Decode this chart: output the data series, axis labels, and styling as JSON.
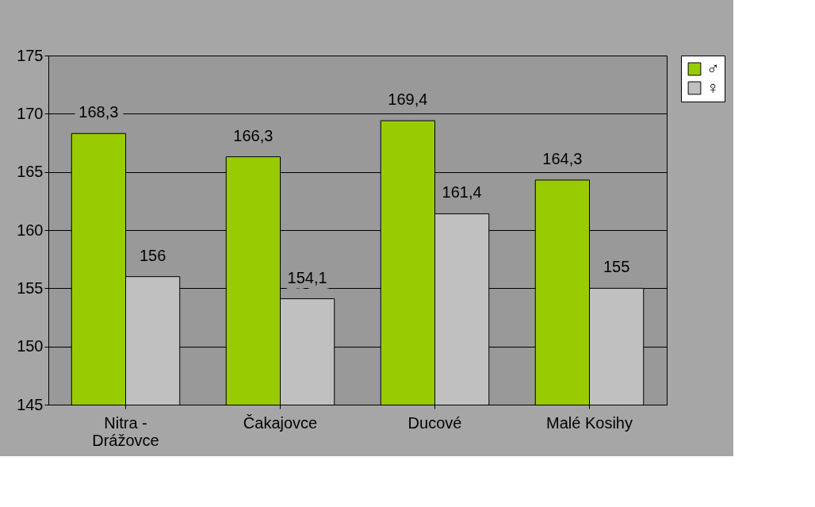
{
  "chart_data": {
    "type": "bar",
    "categories": [
      "Nitra - Drážovce",
      "Čakajovce",
      "Ducové",
      "Malé Kosihy"
    ],
    "series": [
      {
        "name": "♂",
        "color": "#99cc00",
        "values": [
          168.3,
          166.3,
          169.4,
          164.3
        ],
        "value_labels": [
          "168,3",
          "166,3",
          "169,4",
          "164,3"
        ]
      },
      {
        "name": "♀",
        "color": "#c0c0c0",
        "values": [
          156,
          154.1,
          161.4,
          155
        ],
        "value_labels": [
          "156",
          "154,1",
          "161,4",
          "155"
        ]
      }
    ],
    "ylim": [
      145,
      175
    ],
    "yticks": [
      145,
      150,
      155,
      160,
      165,
      170,
      175
    ],
    "grid": "y",
    "legend": "right"
  }
}
